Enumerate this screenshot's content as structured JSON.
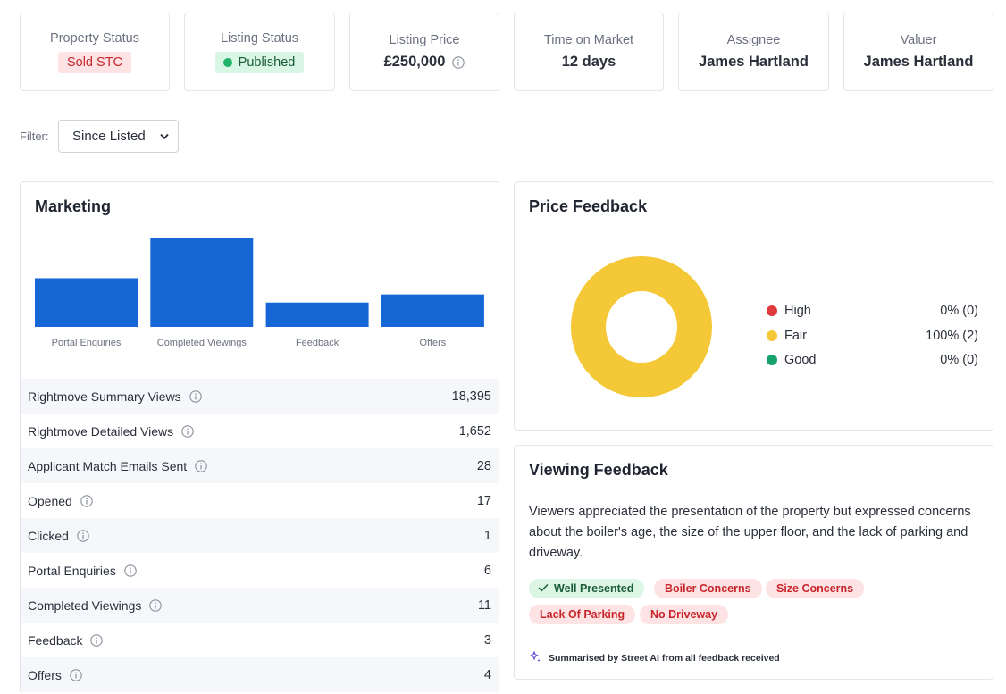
{
  "stats": {
    "property_status": {
      "label": "Property Status",
      "value": "Sold STC"
    },
    "listing_status": {
      "label": "Listing Status",
      "value": "Published"
    },
    "listing_price": {
      "label": "Listing Price",
      "value": "£250,000"
    },
    "time_on_market": {
      "label": "Time on Market",
      "value": "12 days"
    },
    "assignee": {
      "label": "Assignee",
      "value": "James Hartland"
    },
    "valuer": {
      "label": "Valuer",
      "value": "James Hartland"
    }
  },
  "filter": {
    "label": "Filter:",
    "selected": "Since Listed"
  },
  "marketing": {
    "title": "Marketing",
    "rows": [
      {
        "label": "Rightmove Summary Views",
        "value": "18,395"
      },
      {
        "label": "Rightmove Detailed Views",
        "value": "1,652"
      },
      {
        "label": "Applicant Match Emails Sent",
        "value": "28"
      },
      {
        "label": "Opened",
        "value": "17"
      },
      {
        "label": "Clicked",
        "value": "1"
      },
      {
        "label": "Portal Enquiries",
        "value": "6"
      },
      {
        "label": "Completed Viewings",
        "value": "11"
      },
      {
        "label": "Feedback",
        "value": "3"
      },
      {
        "label": "Offers",
        "value": "4"
      }
    ]
  },
  "chart_data": {
    "type": "bar",
    "categories": [
      "Portal Enquiries",
      "Completed Viewings",
      "Feedback",
      "Offers"
    ],
    "values": [
      6,
      11,
      3,
      4
    ],
    "ylim": [
      0,
      11
    ],
    "color": "#1766d6",
    "grid": false
  },
  "price_feedback": {
    "title": "Price Feedback",
    "items": [
      {
        "name": "High",
        "value": "0% (0)",
        "share": 0,
        "color": "#e0393e"
      },
      {
        "name": "Fair",
        "value": "100% (2)",
        "share": 1,
        "color": "#f4c836"
      },
      {
        "name": "Good",
        "value": "0% (0)",
        "share": 0,
        "color": "#15a36b"
      }
    ]
  },
  "viewing_feedback": {
    "title": "Viewing Feedback",
    "summary": "Viewers appreciated the presentation of the property but expressed concerns about the boiler's age, the size of the upper floor, and the lack of parking and driveway.",
    "tags": [
      {
        "label": "Well Presented",
        "tone": "positive"
      },
      {
        "label": "Boiler Concerns",
        "tone": "negative"
      },
      {
        "label": "Size Concerns",
        "tone": "negative"
      },
      {
        "label": "Lack Of Parking",
        "tone": "negative"
      },
      {
        "label": "No Driveway",
        "tone": "negative"
      }
    ],
    "ai_note": "Summarised by Street AI from all feedback received"
  },
  "colors": {
    "accent_blue": "#1766d6",
    "sold_red": "#c8262c",
    "published_green": "#1fb46a",
    "fair_yellow": "#f4c836"
  }
}
